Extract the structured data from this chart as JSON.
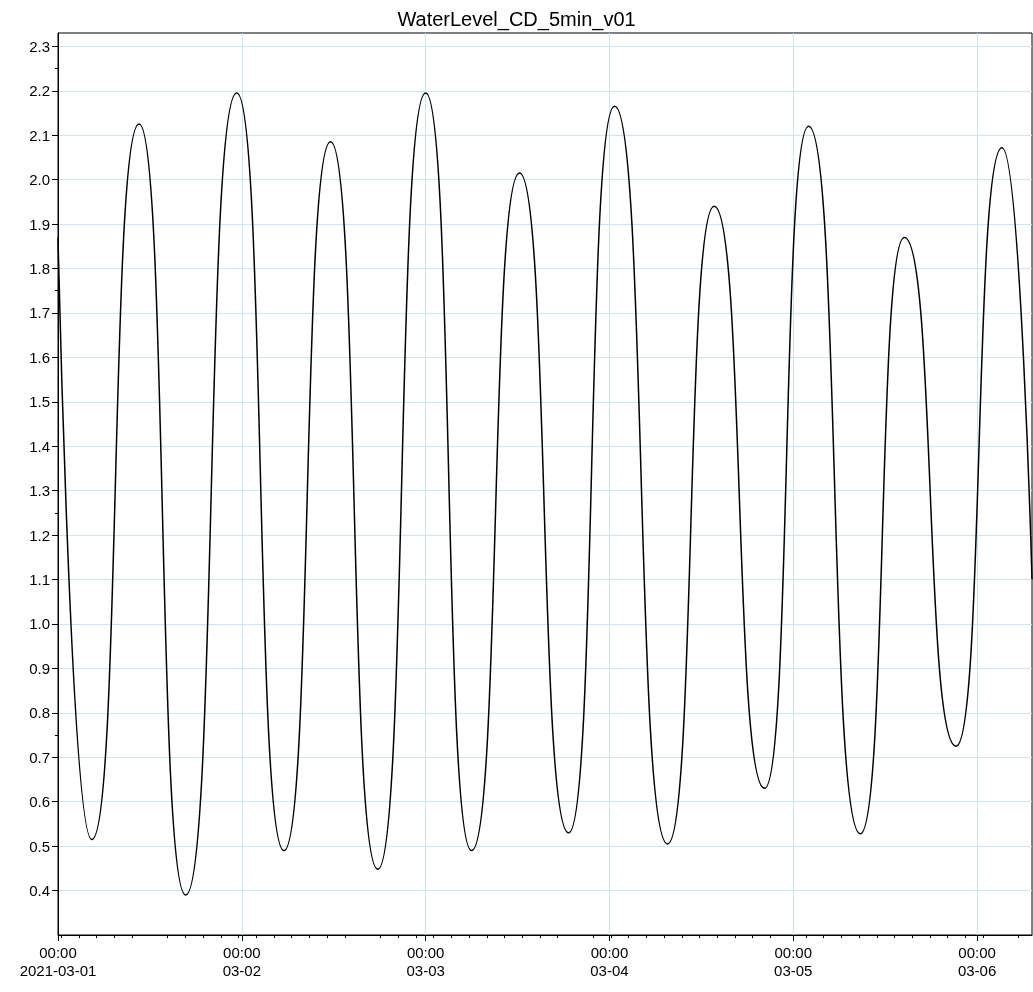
{
  "chart_data": {
    "type": "line",
    "title": "WaterLevel_CD_5min_v01",
    "x": [
      "2021-03-01T00:00",
      "2021-03-01T04:25",
      "2021-03-01T10:35",
      "2021-03-01T16:40",
      "2021-03-01T23:20",
      "2021-03-02T05:30",
      "2021-03-02T11:35",
      "2021-03-02T17:45",
      "2021-03-03T00:00",
      "2021-03-03T06:00",
      "2021-03-03T12:15",
      "2021-03-03T18:40",
      "2021-03-04T00:40",
      "2021-03-04T07:35",
      "2021-03-04T13:40",
      "2021-03-04T20:15",
      "2021-03-05T02:00",
      "2021-03-05T08:45",
      "2021-03-05T14:30",
      "2021-03-05T21:15",
      "2021-03-06T03:15",
      "2021-03-06T07:10"
    ],
    "series": [
      {
        "color": "#000000",
        "values": [
          1.87,
          0.515,
          2.125,
          0.39,
          2.195,
          0.49,
          2.085,
          0.448,
          2.195,
          0.49,
          2.015,
          0.53,
          2.165,
          0.505,
          1.94,
          0.63,
          2.12,
          0.528,
          1.87,
          0.725,
          2.072,
          1.1
        ]
      }
    ],
    "xlim": [
      "2021-03-01T00:00",
      "2021-03-06T07:10"
    ],
    "xticks": [
      {
        "value": "2021-03-01",
        "label": "00:00\n2021-03-01"
      },
      {
        "value": "2021-03-02",
        "label": "00:00\n03-02"
      },
      {
        "value": "2021-03-03",
        "label": "00:00\n03-03"
      },
      {
        "value": "2021-03-04",
        "label": "00:00\n03-04"
      },
      {
        "value": "2021-03-05",
        "label": "00:00\n03-05"
      },
      {
        "value": "2021-03-06",
        "label": "00:00\n03-06"
      }
    ],
    "ylim": [
      0.3,
      2.33
    ],
    "yticks": [
      0.4,
      0.5,
      0.6,
      0.7,
      0.8,
      0.9,
      {
        "value": 1,
        "label": "1.0"
      },
      1.1,
      1.2,
      1.3,
      1.4,
      1.5,
      1.6,
      1.7,
      1.8,
      1.9,
      {
        "value": 2,
        "label": "2.0"
      },
      2.1,
      2.2,
      2.3
    ],
    "grid": true,
    "marker": "none",
    "line_style": "solid"
  }
}
